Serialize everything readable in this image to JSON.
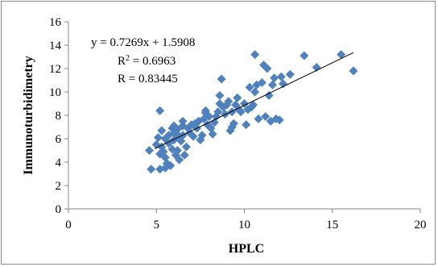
{
  "chart_data": {
    "type": "scatter",
    "title": "",
    "xlabel": "HPLC",
    "ylabel": "Immunoturbidimetry",
    "xlim": [
      0,
      20
    ],
    "ylim": [
      0,
      16
    ],
    "xticks": [
      0,
      5,
      10,
      15,
      20
    ],
    "yticks": [
      0,
      2,
      4,
      6,
      8,
      10,
      12,
      14,
      16
    ],
    "grid": "none",
    "legend": "none",
    "marker": "diamond",
    "marker_color": "#4f81bd",
    "trendline": {
      "slope": 0.7269,
      "intercept": 1.5908,
      "x_range": [
        4.9,
        16.2
      ],
      "color": "#000000"
    },
    "annotations": {
      "equation": "y = 0.7269x + 1.5908",
      "r2_prefix": "R",
      "r2_sup": "2",
      "r2_value": " = 0.6963",
      "r": "R = 0.83445"
    },
    "points": [
      [
        4.6,
        5.0
      ],
      [
        4.7,
        3.4
      ],
      [
        5.0,
        5.5
      ],
      [
        5.1,
        6.1
      ],
      [
        5.2,
        4.7
      ],
      [
        5.2,
        3.4
      ],
      [
        5.2,
        8.4
      ],
      [
        5.3,
        6.7
      ],
      [
        5.3,
        5.3
      ],
      [
        5.4,
        4.9
      ],
      [
        5.5,
        6.0
      ],
      [
        5.5,
        4.4
      ],
      [
        5.5,
        3.5
      ],
      [
        5.6,
        3.9
      ],
      [
        5.7,
        6.3
      ],
      [
        5.7,
        5.6
      ],
      [
        5.8,
        3.7
      ],
      [
        5.9,
        6.9
      ],
      [
        5.9,
        5.1
      ],
      [
        6.0,
        7.1
      ],
      [
        6.0,
        6.5
      ],
      [
        6.0,
        5.9
      ],
      [
        6.1,
        4.6
      ],
      [
        6.2,
        6.8
      ],
      [
        6.2,
        5.0
      ],
      [
        6.3,
        6.2
      ],
      [
        6.3,
        4.2
      ],
      [
        6.4,
        5.8
      ],
      [
        6.5,
        7.5
      ],
      [
        6.5,
        7.1
      ],
      [
        6.5,
        6.3
      ],
      [
        6.6,
        4.6
      ],
      [
        6.7,
        5.3
      ],
      [
        6.8,
        6.9
      ],
      [
        6.9,
        6.5
      ],
      [
        7.0,
        7.2
      ],
      [
        7.1,
        6.2
      ],
      [
        7.2,
        7.3
      ],
      [
        7.3,
        6.9
      ],
      [
        7.4,
        7.5
      ],
      [
        7.5,
        5.9
      ],
      [
        7.6,
        6.3
      ],
      [
        7.7,
        7.7
      ],
      [
        7.8,
        8.2
      ],
      [
        7.8,
        8.4
      ],
      [
        7.9,
        7.2
      ],
      [
        8.0,
        7.9
      ],
      [
        8.1,
        6.9
      ],
      [
        8.2,
        6.4
      ],
      [
        8.3,
        7.4
      ],
      [
        8.4,
        7.9
      ],
      [
        8.5,
        8.3
      ],
      [
        8.6,
        9.7
      ],
      [
        8.6,
        9.0
      ],
      [
        8.7,
        11.1
      ],
      [
        8.8,
        8.7
      ],
      [
        8.9,
        8.1
      ],
      [
        9.0,
        8.9
      ],
      [
        9.1,
        9.2
      ],
      [
        9.2,
        6.7
      ],
      [
        9.3,
        7.0
      ],
      [
        9.3,
        8.3
      ],
      [
        9.4,
        7.3
      ],
      [
        9.5,
        8.9
      ],
      [
        9.6,
        9.5
      ],
      [
        9.7,
        8.5
      ],
      [
        9.8,
        8.3
      ],
      [
        10.0,
        9.0
      ],
      [
        10.1,
        7.2
      ],
      [
        10.2,
        8.5
      ],
      [
        10.3,
        10.4
      ],
      [
        10.4,
        8.7
      ],
      [
        10.5,
        8.9
      ],
      [
        10.6,
        10.0
      ],
      [
        10.6,
        13.2
      ],
      [
        10.7,
        10.6
      ],
      [
        10.8,
        7.7
      ],
      [
        11.0,
        10.8
      ],
      [
        11.1,
        12.3
      ],
      [
        11.2,
        7.9
      ],
      [
        11.3,
        12.0
      ],
      [
        11.4,
        9.7
      ],
      [
        11.5,
        7.5
      ],
      [
        11.6,
        10.6
      ],
      [
        11.7,
        11.2
      ],
      [
        11.8,
        7.7
      ],
      [
        12.0,
        7.6
      ],
      [
        12.1,
        11.3
      ],
      [
        12.2,
        10.7
      ],
      [
        12.6,
        11.5
      ],
      [
        13.4,
        13.1
      ],
      [
        14.1,
        12.1
      ],
      [
        15.5,
        13.2
      ],
      [
        16.2,
        11.8
      ]
    ]
  }
}
